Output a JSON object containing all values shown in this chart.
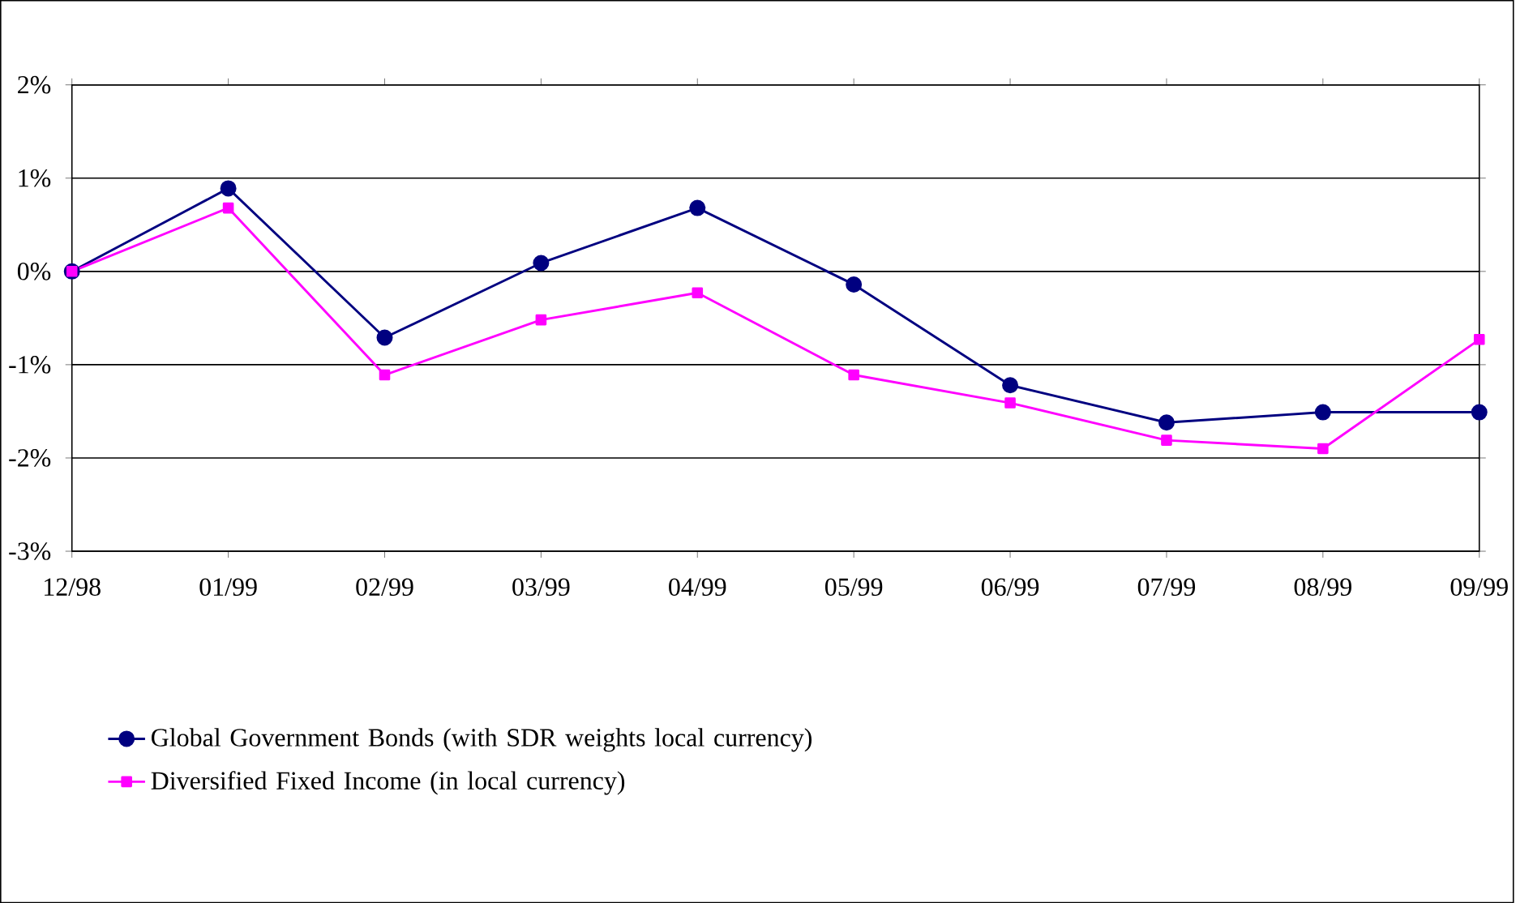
{
  "chart_data": {
    "type": "line",
    "categories": [
      "12/98",
      "01/99",
      "02/99",
      "03/99",
      "04/99",
      "05/99",
      "06/99",
      "07/99",
      "08/99",
      "09/99"
    ],
    "series": [
      {
        "name": "Global Government Bonds (with SDR weights local currency)",
        "color": "#000080",
        "marker": "circle",
        "values": [
          0,
          0.89,
          -0.71,
          0.09,
          0.68,
          -0.14,
          -1.22,
          -1.62,
          -1.51,
          -1.51
        ]
      },
      {
        "name": "Diversified Fixed Income (in local currency)",
        "color": "#ff00ff",
        "marker": "square",
        "values": [
          0,
          0.68,
          -1.11,
          -0.52,
          -0.23,
          -1.11,
          -1.41,
          -1.81,
          -1.9,
          -0.73
        ]
      }
    ],
    "ylim": [
      -3,
      2
    ],
    "yticks": [
      {
        "value": -3,
        "label": "-3%"
      },
      {
        "value": -2,
        "label": "-2%"
      },
      {
        "value": -1,
        "label": "-1%"
      },
      {
        "value": 0,
        "label": "0%"
      },
      {
        "value": 1,
        "label": "1%"
      },
      {
        "value": 2,
        "label": "2%"
      }
    ],
    "grid": "y",
    "legend": "bottom",
    "line_style": "solid"
  }
}
